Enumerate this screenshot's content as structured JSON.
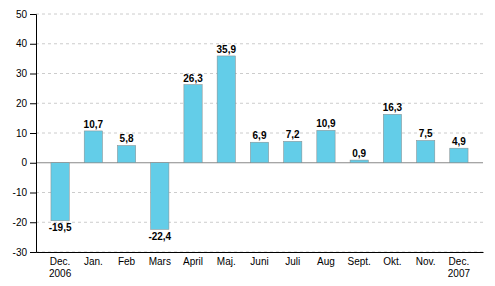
{
  "chart_data": {
    "type": "bar",
    "categories": [
      "Dec.\n2006",
      "Jan.",
      "Feb",
      "Mars",
      "April",
      "Maj.",
      "Juni",
      "Juli",
      "Aug",
      "Sept.",
      "Okt.",
      "Nov.",
      "Dec.\n2007"
    ],
    "values": [
      -19.5,
      10.7,
      5.8,
      -22.4,
      26.3,
      35.9,
      6.9,
      7.2,
      10.9,
      0.9,
      16.3,
      7.5,
      4.9
    ],
    "value_labels": [
      "-19,5",
      "10,7",
      "5,8",
      "-22,4",
      "26,3",
      "35,9",
      "6,9",
      "7,2",
      "10,9",
      "0,9",
      "16,3",
      "7,5",
      "4,9"
    ],
    "data_labels": true,
    "color": "#63cde8",
    "ylim": [
      -30,
      50
    ],
    "yticks": [
      -30,
      -20,
      -10,
      0,
      10,
      20,
      30,
      40,
      50
    ],
    "grid": true
  }
}
